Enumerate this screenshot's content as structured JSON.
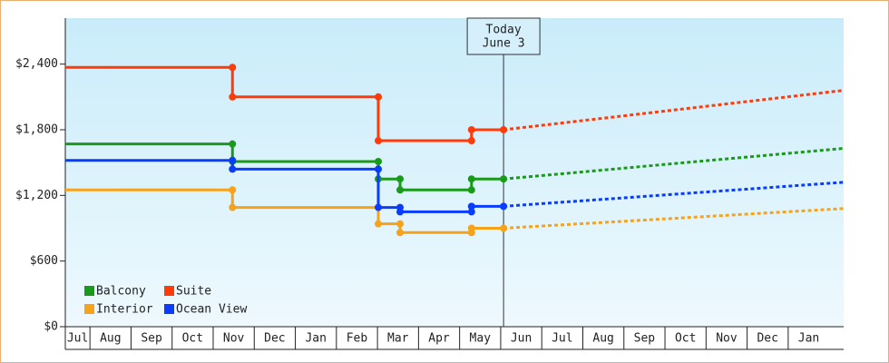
{
  "chart_data": {
    "type": "step-line",
    "annotation": {
      "x": 11.07,
      "lines": [
        "Today",
        "June 3"
      ]
    },
    "xlim": [
      0.4,
      19.35
    ],
    "xticks": [
      {
        "value": 0,
        "label": "Jul"
      },
      {
        "value": 1,
        "label": "Aug"
      },
      {
        "value": 2,
        "label": "Sep"
      },
      {
        "value": 3,
        "label": "Oct"
      },
      {
        "value": 4,
        "label": "Nov"
      },
      {
        "value": 5,
        "label": "Dec"
      },
      {
        "value": 6,
        "label": "Jan"
      },
      {
        "value": 7,
        "label": "Feb"
      },
      {
        "value": 8,
        "label": "Mar"
      },
      {
        "value": 9,
        "label": "Apr"
      },
      {
        "value": 10,
        "label": "May"
      },
      {
        "value": 11,
        "label": "Jun"
      },
      {
        "value": 12,
        "label": "Jul"
      },
      {
        "value": 13,
        "label": "Aug"
      },
      {
        "value": 14,
        "label": "Sep"
      },
      {
        "value": 15,
        "label": "Oct"
      },
      {
        "value": 16,
        "label": "Nov"
      },
      {
        "value": 17,
        "label": "Dec"
      },
      {
        "value": 18,
        "label": "Jan"
      }
    ],
    "ylim": [
      0,
      2820
    ],
    "yticks": [
      {
        "value": 0,
        "label": "$0"
      },
      {
        "value": 600,
        "label": "$600"
      },
      {
        "value": 1200,
        "label": "$1,200"
      },
      {
        "value": 1800,
        "label": "$1,800"
      },
      {
        "value": 2400,
        "label": "$2,400"
      }
    ],
    "legend": "lower-left",
    "series": [
      {
        "name": "Balcony",
        "color": "#1a9a1a",
        "x": [
          0.4,
          4.47,
          4.47,
          8.02,
          8.02,
          8.55,
          8.55,
          10.29,
          10.29,
          11.07
        ],
        "values": [
          1670,
          1670,
          1510,
          1510,
          1350,
          1350,
          1250,
          1250,
          1350,
          1350
        ],
        "forecast_x": [
          11.07,
          19.35
        ],
        "forecast_values": [
          1350,
          1630
        ]
      },
      {
        "name": "Suite",
        "color": "#ff3b0a",
        "x": [
          0.4,
          4.47,
          4.47,
          8.02,
          8.02,
          10.29,
          10.29,
          11.07
        ],
        "values": [
          2370,
          2370,
          2100,
          2100,
          1700,
          1700,
          1800,
          1800
        ],
        "forecast_x": [
          11.07,
          19.35
        ],
        "forecast_values": [
          1800,
          2160
        ]
      },
      {
        "name": "Interior",
        "color": "#f5a31a",
        "x": [
          0.4,
          4.47,
          4.47,
          8.02,
          8.02,
          8.55,
          8.55,
          10.29,
          10.29,
          11.07
        ],
        "values": [
          1250,
          1250,
          1090,
          1090,
          940,
          940,
          860,
          860,
          900,
          900
        ],
        "forecast_x": [
          11.07,
          19.35
        ],
        "forecast_values": [
          900,
          1080
        ]
      },
      {
        "name": "Ocean View",
        "color": "#0a3cff",
        "x": [
          0.4,
          4.47,
          4.47,
          8.02,
          8.02,
          8.55,
          8.55,
          10.29,
          10.29,
          11.07
        ],
        "values": [
          1520,
          1520,
          1440,
          1440,
          1090,
          1090,
          1050,
          1050,
          1100,
          1100
        ],
        "forecast_x": [
          11.07,
          19.35
        ],
        "forecast_values": [
          1100,
          1320
        ]
      }
    ]
  }
}
